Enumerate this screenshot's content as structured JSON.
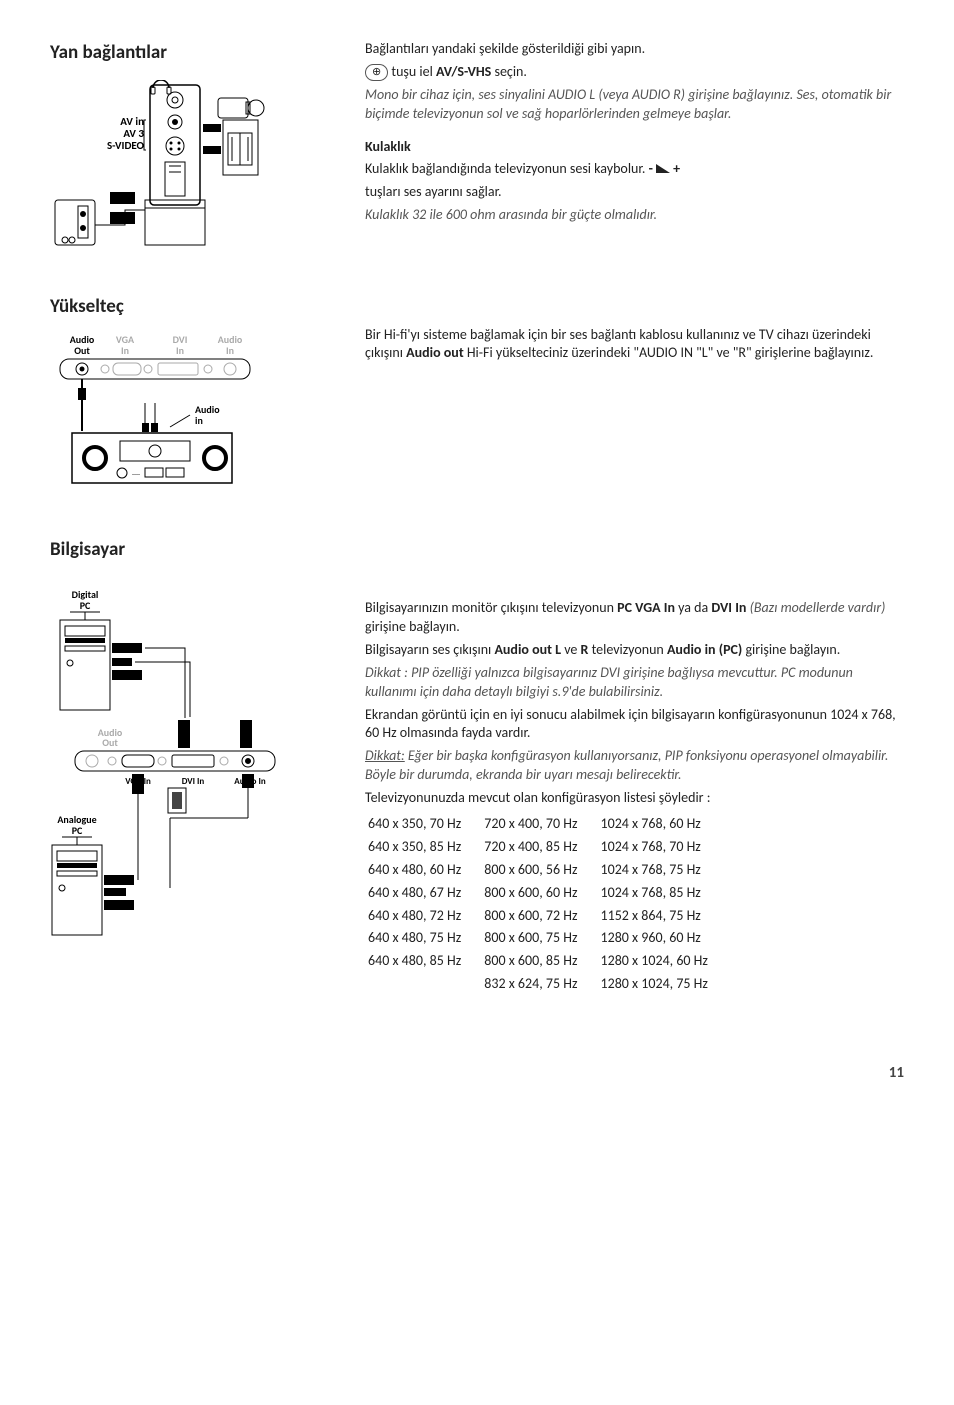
{
  "side": {
    "heading": "Yan bağlantılar",
    "labels": {
      "avin": "AV in",
      "av3": "AV 3",
      "svideo": "S-VIDEO"
    },
    "text": {
      "line1_a": "Bağlantıları yandaki şekilde gösterildiği gibi yapın.",
      "line2_a": " tuşu iel ",
      "line2_b": "AV/S-VHS",
      "line2_c": " seçin.",
      "ital": "Mono bir cihaz için, ses sinyalini AUDIO L (veya AUDIO R) girişine bağlayınız. Ses, otomatik bir biçimde televizyonun sol ve sağ hoparlörlerinden gelmeye başlar.",
      "hp_head": "Kulaklık",
      "hp1_a": "Kulaklık bağlandığında televizyonun sesi kaybolur. ",
      "hp1_minus": "- ",
      "hp1_plus": " +",
      "hp2": "tuşları ses ayarını sağlar.",
      "hp_ital": "Kulaklık 32 ile 600 ohm arasında bir güçte olmalıdır."
    }
  },
  "amp": {
    "heading": "Yükselteç",
    "labels": {
      "audio_out": "Audio",
      "out": "Out",
      "vga": "VGA",
      "in": "In",
      "dvi": "DVI",
      "audio": "Audio",
      "audio_in": "Audio",
      "in2": "in"
    },
    "text": {
      "p_a": "Bir Hi-fi'yı sisteme bağlamak için bir ses bağlantı kablosu kullanınız ve TV cihazı üzerindeki çıkışını ",
      "p_b": "Audio out",
      "p_c": " Hi-Fi yükselteciniz üzerindeki \"AUDIO IN \"L\" ve \"R\" girişlerine bağlayınız."
    }
  },
  "pc": {
    "heading": "Bilgisayar",
    "labels": {
      "digital": "Digital",
      "pc": "PC",
      "audio": "Audio",
      "out": "Out",
      "vga_in": "VGA In",
      "dvi_in": "DVI In",
      "audio_in": "Audio In",
      "analogue": "Analogue",
      "pc2": "PC"
    },
    "text": {
      "p1_a": "Bilgisayarınızın monitör çıkışını televizyonun ",
      "p1_b": "PC VGA In",
      "p1_c": " ya da ",
      "p1_d": "DVI In",
      "p1_e": " (Bazı modellerde vardır)",
      "p1_f": " girişine bağlayın.",
      "p2_a": "Bilgisayarın ses çıkışını ",
      "p2_b": "Audio out L",
      "p2_c": " ve ",
      "p2_d": "R",
      "p2_e": " televizyonun ",
      "p2_f": "Audio in (PC)",
      "p2_g": " girişine bağlayın.",
      "ital1": "Dikkat : PIP özelliği yalnızca bilgisayarınız DVI girişine bağlıysa mevcuttur. PC modunun kullanımı için daha detaylı bilgiyi s.9'de bulabilirsiniz.",
      "p3": "Ekrandan görüntü için en iyi sonucu alabilmek için bilgisayarın konfigürasyonunun 1024 x 768, 60 Hz olmasında fayda vardır.",
      "ital2_u": "Dikkat:",
      "ital2": " Eğer bir başka konfigürasyon kullanıyorsanız, PIP fonksiyonu operasyonel olmayabilir. Böyle bir durumda, ekranda bir uyarı mesajı belirecektir.",
      "listhead": "Televizyonunuzda mevcut olan konfigürasyon listesi şöyledir :"
    },
    "configs": [
      [
        "640 x 350, 70 Hz",
        "720 x 400, 70 Hz",
        "1024 x 768, 60 Hz"
      ],
      [
        "640 x 350, 85 Hz",
        "720 x 400, 85 Hz",
        "1024 x 768, 70 Hz"
      ],
      [
        "640 x 480, 60 Hz",
        "800 x 600, 56 Hz",
        "1024 x 768, 75 Hz"
      ],
      [
        "640 x 480, 67 Hz",
        "800 x 600, 60 Hz",
        "1024 x 768, 85 Hz"
      ],
      [
        "640 x 480, 72 Hz",
        "800 x 600, 72 Hz",
        "1152 x 864, 75 Hz"
      ],
      [
        "640 x 480, 75 Hz",
        "800 x 600, 75 Hz",
        "1280 x 960, 60 Hz"
      ],
      [
        "640 x 480, 85 Hz",
        "800 x 600, 85 Hz",
        "1280 x 1024, 60 Hz"
      ],
      [
        "",
        "832 x 624, 75 Hz",
        "1280 x 1024, 75 Hz"
      ]
    ]
  },
  "page_number": "11"
}
